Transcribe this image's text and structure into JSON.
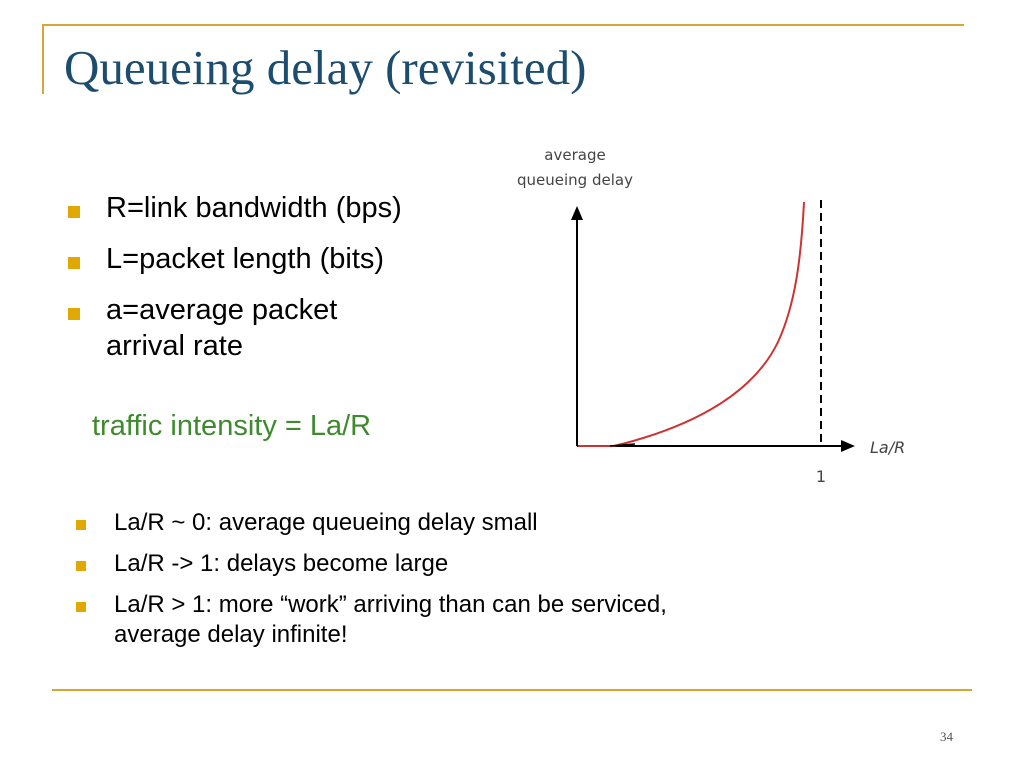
{
  "title": "Queueing delay (revisited)",
  "definitions": [
    {
      "text": "R=link bandwidth (bps)"
    },
    {
      "text": "L=packet length (bits)"
    },
    {
      "text": "a=average packet arrival rate"
    }
  ],
  "traffic_intensity": "traffic intensity = La/R",
  "observations": [
    {
      "text": "La/R ~ 0: average queueing delay small"
    },
    {
      "text": "La/R -> 1: delays become large"
    },
    {
      "text": "La/R > 1: more “work” arriving than can be serviced, average delay infinite!"
    }
  ],
  "graph": {
    "ylabel_line1": "average",
    "ylabel_line2": "queueing delay",
    "xlabel": "La/R",
    "asymptote_label": "1",
    "curve_color": "#cc3333"
  },
  "page_number": "34",
  "colors": {
    "accent": "#d8a536",
    "title": "#1d4d6e",
    "highlight_text": "#3f8a2e",
    "bullet": "#e0a800"
  }
}
